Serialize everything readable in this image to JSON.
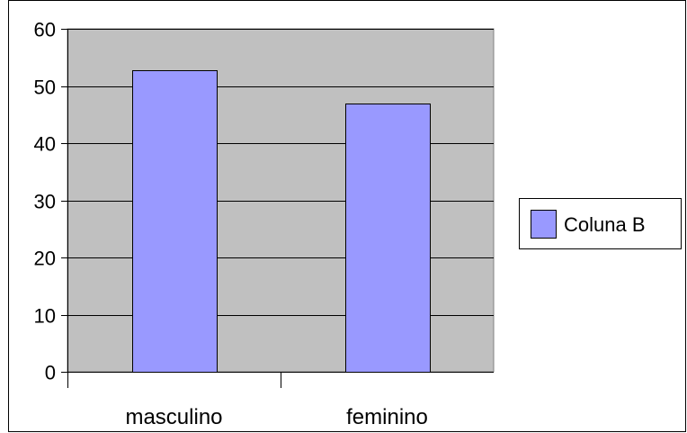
{
  "chart_data": {
    "type": "bar",
    "categories": [
      "masculino",
      "feminino"
    ],
    "series": [
      {
        "name": "Coluna B",
        "values": [
          52.7,
          46.9
        ],
        "color": "#9999ff"
      }
    ],
    "ylim": [
      0,
      60
    ],
    "yticks": [
      0,
      10,
      20,
      30,
      40,
      50,
      60
    ],
    "grid": true,
    "legend_position": "right",
    "plot_background": "#c0c0c0",
    "border_color": "#000000"
  }
}
